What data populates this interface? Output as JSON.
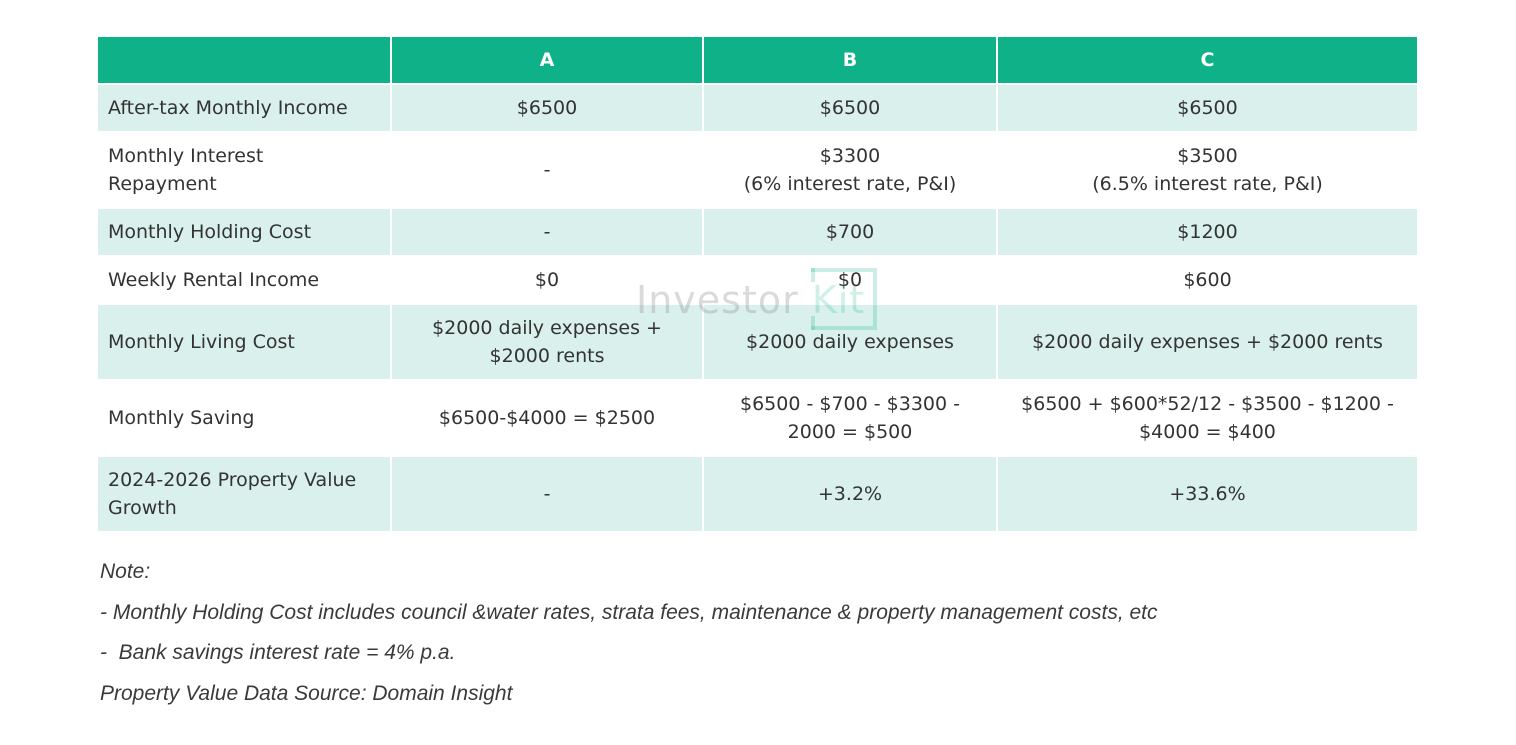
{
  "table": {
    "headers": [
      "",
      "A",
      "B",
      "C"
    ],
    "rows": [
      {
        "label": "After-tax Monthly Income",
        "shaded": true,
        "values": [
          [
            "$6500"
          ],
          [
            "$6500"
          ],
          [
            "$6500"
          ]
        ]
      },
      {
        "label": "Monthly Interest Repayment",
        "label_lines": [
          "Monthly Interest",
          "Repayment"
        ],
        "shaded": false,
        "values": [
          [
            "-"
          ],
          [
            "$3300",
            "(6% interest rate, P&I)"
          ],
          [
            "$3500",
            "(6.5% interest rate, P&I)"
          ]
        ]
      },
      {
        "label": "Monthly Holding Cost",
        "shaded": true,
        "values": [
          [
            "-"
          ],
          [
            "$700"
          ],
          [
            "$1200"
          ]
        ]
      },
      {
        "label": "Weekly Rental Income",
        "shaded": false,
        "values": [
          [
            "$0"
          ],
          [
            "$0"
          ],
          [
            "$600"
          ]
        ]
      },
      {
        "label": "Monthly Living Cost",
        "shaded": true,
        "values": [
          [
            "$2000 daily expenses +",
            "$2000 rents"
          ],
          [
            "$2000 daily expenses"
          ],
          [
            "$2000 daily expenses + $2000 rents"
          ]
        ]
      },
      {
        "label": "Monthly Saving",
        "shaded": false,
        "values": [
          [
            "$6500-$4000 = $2500"
          ],
          [
            "$6500 - $700 - $3300 -",
            "2000 = $500"
          ],
          [
            "$6500 + $600*52/12 - $3500 - $1200 -",
            "$4000 = $400"
          ]
        ]
      },
      {
        "label": "2024-2026 Property Value Growth",
        "label_lines": [
          "2024-2026 Property Value",
          "Growth"
        ],
        "shaded": true,
        "values": [
          [
            "-"
          ],
          [
            "+3.2%"
          ],
          [
            "+33.6%"
          ]
        ]
      }
    ]
  },
  "watermark": {
    "text_main": "Investor",
    "text_accent": "Kit"
  },
  "notes": {
    "heading": "Note:",
    "lines": [
      "- Monthly Holding Cost includes council &water rates, strata fees, maintenance & property management costs, etc",
      "-  Bank savings interest rate = 4% p.a.",
      "Property Value Data Source: Domain Insight"
    ]
  },
  "colors": {
    "header_bg": "#0eb188",
    "header_text": "#ffffff",
    "shaded_row_bg": "#d9f0ec",
    "plain_row_bg": "#ffffff",
    "body_text": "#333333"
  }
}
